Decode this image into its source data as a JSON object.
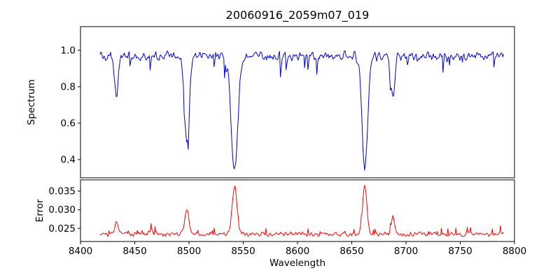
{
  "figure": {
    "title": "20060916_2059m07_019",
    "xlabel": "Wavelength",
    "background": "#ffffff"
  },
  "chart_data": [
    {
      "type": "line",
      "panel": "spectrum",
      "title": "20060916_2059m07_019",
      "ylabel": "Spectrum",
      "color": "#0000dd",
      "xlim": [
        8400,
        8800
      ],
      "ylim": [
        0.3,
        1.13
      ],
      "x_range": [
        8418,
        8790
      ],
      "n_points": 500,
      "baseline": 0.968,
      "noise_amplitude": 0.03,
      "xticks": {
        "values": [
          8400,
          8450,
          8500,
          8550,
          8600,
          8650,
          8700,
          8750,
          8800
        ],
        "labels": [
          "8400",
          "8450",
          "8500",
          "8550",
          "8600",
          "8650",
          "8700",
          "8750",
          "8800"
        ]
      },
      "yticks": {
        "values": [
          0.4,
          0.6,
          0.8,
          1.0
        ],
        "labels": [
          "0.4",
          "0.6",
          "0.8",
          "1.0"
        ]
      },
      "features": [
        {
          "center": 8433,
          "depth": 0.21,
          "sigma": 1.6
        },
        {
          "center": 8498,
          "depth": 0.46,
          "sigma": 2.2
        },
        {
          "center": 8542,
          "depth": 0.63,
          "sigma": 3.0
        },
        {
          "center": 8662,
          "depth": 0.61,
          "sigma": 2.6
        },
        {
          "center": 8688,
          "depth": 0.22,
          "sigma": 1.6
        }
      ]
    },
    {
      "type": "line",
      "panel": "error",
      "ylabel": "Error",
      "color": "#ff0000",
      "xlim": [
        8400,
        8800
      ],
      "ylim": [
        0.0215,
        0.038
      ],
      "x_range": [
        8418,
        8790
      ],
      "n_points": 500,
      "baseline": 0.0235,
      "noise_amplitude": 0.0007,
      "yticks": {
        "values": [
          0.025,
          0.03,
          0.035
        ],
        "labels": [
          "0.025",
          "0.030",
          "0.035"
        ]
      },
      "features": [
        {
          "center": 8433,
          "height": 0.003,
          "sigma": 1.6
        },
        {
          "center": 8465,
          "height": 0.0012,
          "sigma": 1.5
        },
        {
          "center": 8498,
          "height": 0.0072,
          "sigma": 1.8
        },
        {
          "center": 8542,
          "height": 0.013,
          "sigma": 2.2
        },
        {
          "center": 8662,
          "height": 0.0128,
          "sigma": 2.0
        },
        {
          "center": 8688,
          "height": 0.0045,
          "sigma": 1.5
        }
      ]
    }
  ]
}
